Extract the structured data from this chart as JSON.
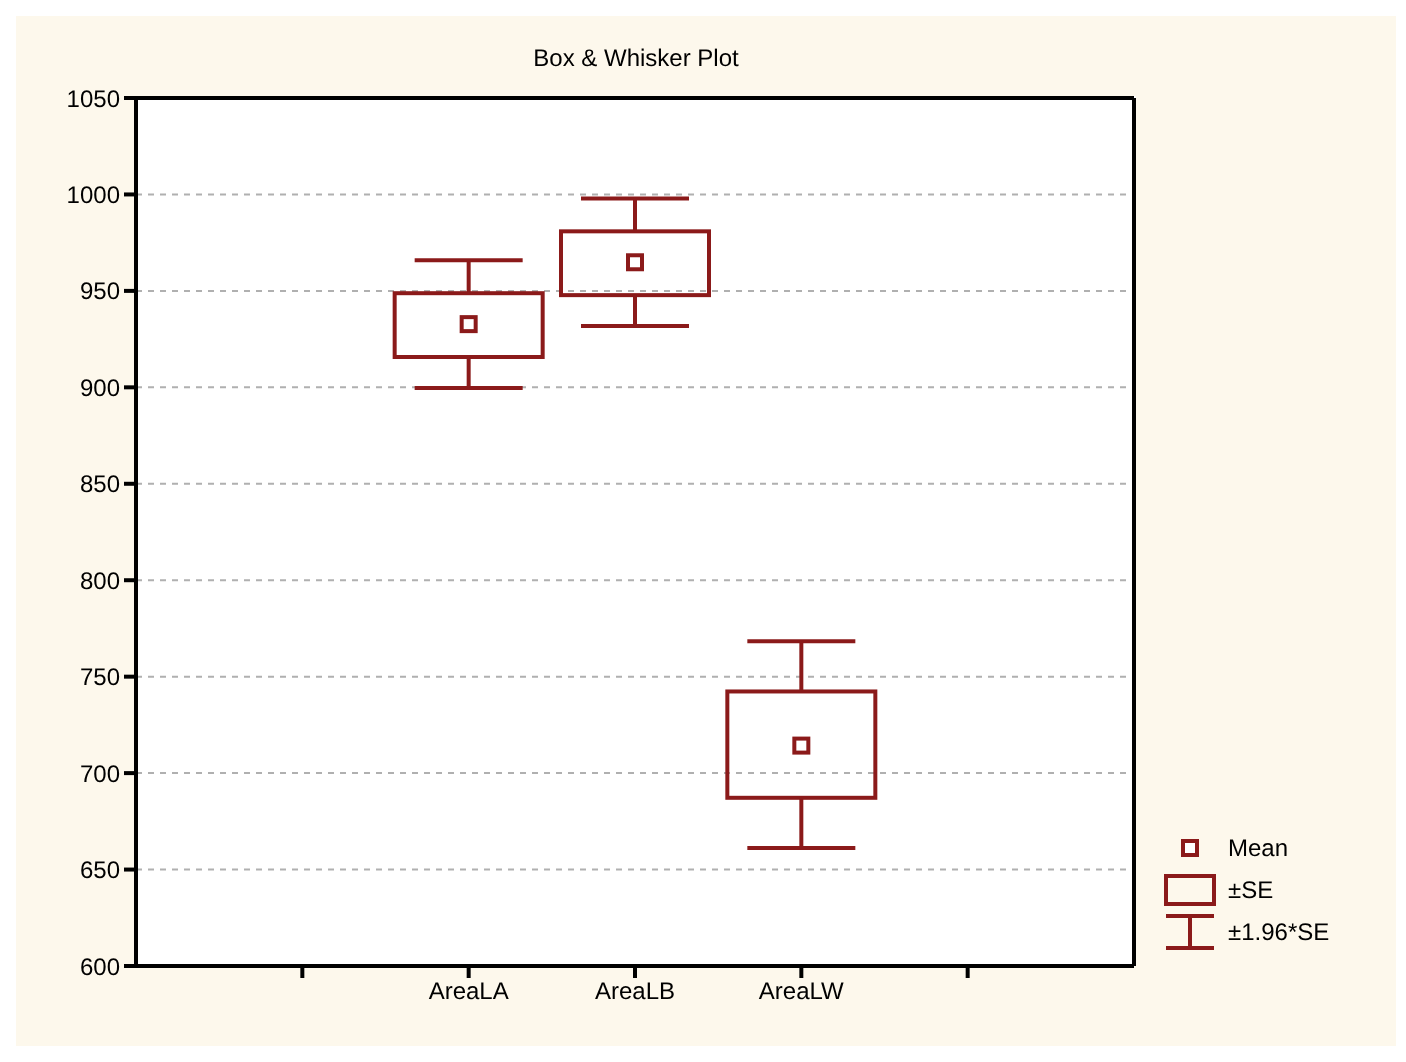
{
  "chart_data": {
    "type": "box",
    "title": "Box & Whisker Plot",
    "categories": [
      null,
      "AreaLA",
      "AreaLB",
      "AreaLW",
      null
    ],
    "color": "#8b1a1a",
    "boxes": [
      null,
      {
        "low": 899,
        "q1": 915,
        "mean": 932,
        "q3": 948,
        "high": 965
      },
      {
        "low": 931,
        "q1": 947,
        "mean": 964,
        "q3": 980,
        "high": 997
      },
      {
        "low": 661,
        "q1": 687,
        "mean": 714,
        "q3": 742,
        "high": 768
      },
      null
    ],
    "ylim": [
      600,
      1050
    ],
    "yticks": [
      600,
      650,
      700,
      750,
      800,
      850,
      900,
      950,
      1000,
      1050
    ],
    "grid": "y",
    "marker": "square",
    "annotations": [
      "Mean",
      "±SE",
      "±1.96*SE"
    ]
  }
}
